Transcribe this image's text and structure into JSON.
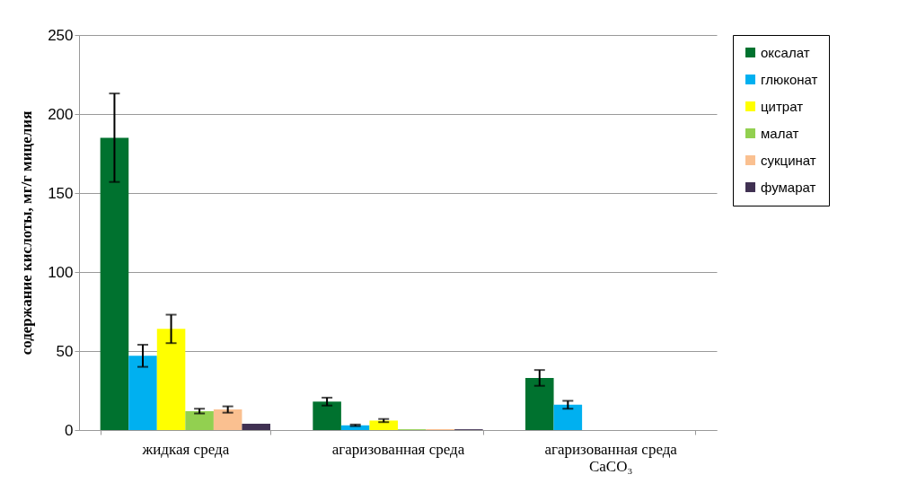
{
  "chart_data": {
    "type": "bar",
    "ylabel": "содержание кислоты, мг/г мицелия",
    "categories": [
      "жидкая среда",
      "агаризованная среда",
      "агаризованная среда СаСО₃"
    ],
    "series": [
      {
        "name": "оксалат",
        "color": "#00722f",
        "values": [
          185,
          18,
          33
        ],
        "errors": [
          28,
          2.5,
          5
        ]
      },
      {
        "name": "глюконат",
        "color": "#00b0f0",
        "values": [
          47,
          3,
          16
        ],
        "errors": [
          7,
          0.5,
          2.5
        ]
      },
      {
        "name": "цитрат",
        "color": "#ffff00",
        "values": [
          64,
          6,
          null
        ],
        "errors": [
          9,
          1,
          null
        ]
      },
      {
        "name": "малат",
        "color": "#92d050",
        "values": [
          12,
          0.5,
          null
        ],
        "errors": [
          1.5,
          null,
          null
        ]
      },
      {
        "name": "сукцинат",
        "color": "#fac090",
        "values": [
          13,
          0.5,
          null
        ],
        "errors": [
          2,
          null,
          null
        ]
      },
      {
        "name": "фумарат",
        "color": "#403152",
        "values": [
          4,
          0.5,
          null
        ],
        "errors": [
          null,
          null,
          null
        ]
      }
    ],
    "ylim": [
      0,
      250
    ],
    "yticks": [
      0,
      50,
      100,
      150,
      200,
      250
    ],
    "grid": "y",
    "legend": "right"
  }
}
